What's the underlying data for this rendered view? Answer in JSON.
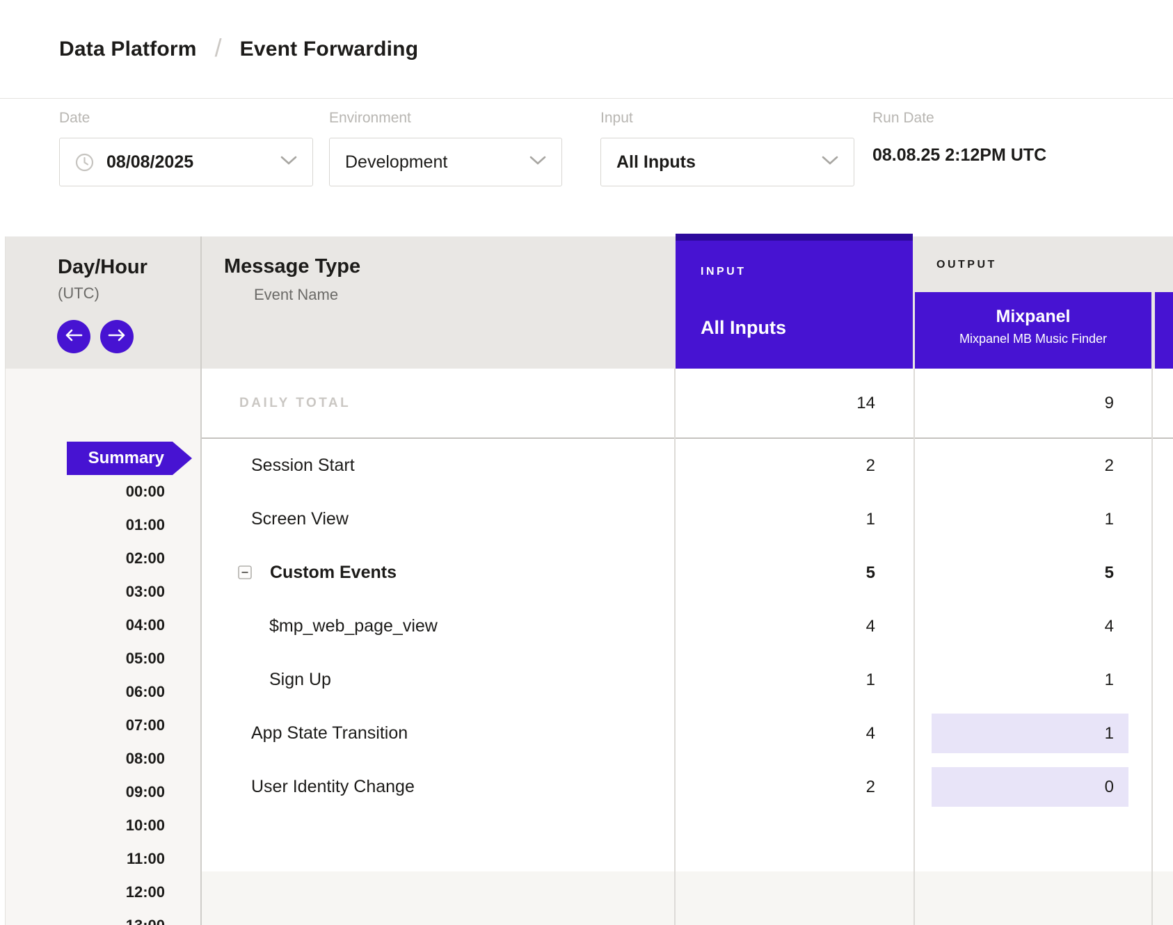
{
  "breadcrumb": {
    "section": "Data Platform",
    "separator": "/",
    "page": "Event Forwarding"
  },
  "filters": {
    "date": {
      "label": "Date",
      "value": "08/08/2025"
    },
    "environment": {
      "label": "Environment",
      "value": "Development"
    },
    "input": {
      "label": "Input",
      "value": "All Inputs"
    },
    "run_date": {
      "label": "Run Date",
      "value": "08.08.25 2:12PM UTC"
    }
  },
  "table": {
    "day_hour": {
      "title": "Day/Hour",
      "subtitle": "(UTC)"
    },
    "message_type": {
      "title": "Message Type",
      "subtitle": "Event Name"
    },
    "input_group": {
      "label": "INPUT",
      "column": "All Inputs"
    },
    "output_group": {
      "label": "OUTPUT",
      "column": "Mixpanel",
      "column_subtitle": "Mixpanel MB Music Finder"
    },
    "daily_total": {
      "label": "DAILY TOTAL",
      "input": "14",
      "output": "9"
    },
    "rows": [
      {
        "label": "Session Start",
        "indent": 1,
        "bold": false,
        "collapse_icon": false,
        "input": "2",
        "output": "2",
        "highlight": false
      },
      {
        "label": "Screen View",
        "indent": 1,
        "bold": false,
        "collapse_icon": false,
        "input": "1",
        "output": "1",
        "highlight": false
      },
      {
        "label": "Custom Events",
        "indent": 1,
        "bold": true,
        "collapse_icon": true,
        "input": "5",
        "output": "5",
        "highlight": false
      },
      {
        "label": "$mp_web_page_view",
        "indent": 2,
        "bold": false,
        "collapse_icon": false,
        "input": "4",
        "output": "4",
        "highlight": false
      },
      {
        "label": "Sign Up",
        "indent": 2,
        "bold": false,
        "collapse_icon": false,
        "input": "1",
        "output": "1",
        "highlight": false
      },
      {
        "label": "App State Transition",
        "indent": 1,
        "bold": false,
        "collapse_icon": false,
        "input": "4",
        "output": "1",
        "highlight": true
      },
      {
        "label": "User Identity Change",
        "indent": 1,
        "bold": false,
        "collapse_icon": false,
        "input": "2",
        "output": "0",
        "highlight": true
      }
    ],
    "sidebar": {
      "summary": "Summary",
      "hours": [
        "00:00",
        "01:00",
        "02:00",
        "03:00",
        "04:00",
        "05:00",
        "06:00",
        "07:00",
        "08:00",
        "09:00",
        "10:00",
        "11:00",
        "12:00",
        "13:00"
      ]
    }
  },
  "colors": {
    "purple": "#4713d2",
    "purple_dark": "#2d0a9c",
    "highlight": "#e8e4f8",
    "header_band": "#e9e7e4"
  }
}
